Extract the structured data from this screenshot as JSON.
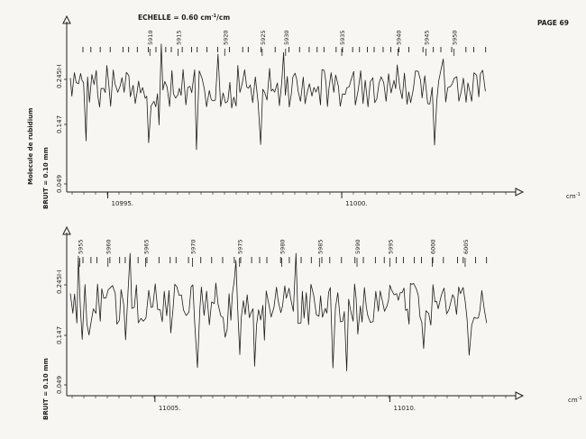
{
  "header": {
    "scale_label": "ECHELLE = 0.60 cm",
    "scale_sup": "-1",
    "scale_tail": "/cm",
    "page_label": "PAGE 69"
  },
  "side": {
    "molecule_label": "Molecule de rubidium",
    "noise_label": "BRUIT = 0.10 mm"
  },
  "colors": {
    "paper": "#f7f6f2",
    "ink": "#1e1e1e"
  },
  "chart_data": [
    {
      "type": "line",
      "title": "",
      "xlabel": "cm-1",
      "ylabel": "I-I",
      "y_ticks": [
        "0.049",
        "0.147",
        "0.245"
      ],
      "x_ticks": [
        {
          "value": 10995.0,
          "label": "10995."
        },
        {
          "value": 11000.0,
          "label": "11000."
        }
      ],
      "xlim": [
        10994.2,
        11003.1
      ],
      "line_numbers": [
        {
          "label": "5910",
          "x": 10995.9
        },
        {
          "label": "5915",
          "x": 10996.5
        },
        {
          "label": "5920",
          "x": 10997.5
        },
        {
          "label": "5925",
          "x": 10998.3
        },
        {
          "label": "5930",
          "x": 10998.8
        },
        {
          "label": "5935",
          "x": 11000.0
        },
        {
          "label": "5940",
          "x": 11001.2
        },
        {
          "label": "5945",
          "x": 11001.8
        },
        {
          "label": "5950",
          "x": 11002.4
        }
      ],
      "trace": {
        "baseline": 0.245,
        "amplitude": 0.06,
        "seed": 11
      }
    },
    {
      "type": "line",
      "title": "",
      "xlabel": "cm-1",
      "ylabel": "I-I",
      "y_ticks": [
        "0.049",
        "0.147",
        "0.245"
      ],
      "x_ticks": [
        {
          "value": 11005.0,
          "label": "11005."
        },
        {
          "value": 11010.0,
          "label": "11010."
        }
      ],
      "xlim": [
        11003.2,
        11012.1
      ],
      "line_numbers": [
        {
          "label": "5955",
          "x": 11003.4
        },
        {
          "label": "5960",
          "x": 11004.0
        },
        {
          "label": "5965",
          "x": 11004.8
        },
        {
          "label": "5970",
          "x": 11005.8
        },
        {
          "label": "5975",
          "x": 11006.8
        },
        {
          "label": "5980",
          "x": 11007.7
        },
        {
          "label": "5985",
          "x": 11008.5
        },
        {
          "label": "5990",
          "x": 11009.3
        },
        {
          "label": "5995",
          "x": 11010.0
        },
        {
          "label": "6000",
          "x": 11010.9
        },
        {
          "label": "6005",
          "x": 11011.6
        }
      ],
      "trace": {
        "baseline": 0.245,
        "amplitude": 0.06,
        "seed": 29
      }
    }
  ]
}
